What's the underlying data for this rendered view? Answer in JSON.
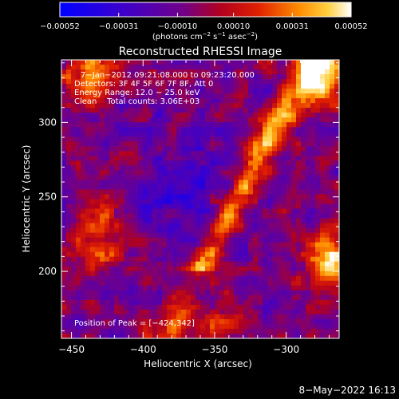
{
  "chart_data": {
    "type": "heatmap",
    "title": "Reconstructed RHESSI Image",
    "xlabel": "Heliocentric X (arcsec)",
    "ylabel": "Heliocentric Y (arcsec)",
    "xlim": [
      -457,
      -263
    ],
    "ylim": [
      155,
      342
    ],
    "x_ticks": [
      -450,
      -400,
      -350,
      -300
    ],
    "y_ticks": [
      200,
      250,
      300
    ],
    "colorbar": {
      "range": [
        -0.00052,
        0.00052
      ],
      "tick_values": [
        -0.00052,
        -0.00031,
        -0.0001,
        0.0001,
        0.00031,
        0.00052
      ],
      "tick_labels": [
        "−0.00052",
        "−0.00031",
        "−0.00010",
        "0.00010",
        "0.00031",
        "0.00052"
      ],
      "unit_main": "(photons cm",
      "unit_exp1": "−2",
      "unit_mid": " s",
      "unit_exp2": "−1",
      "unit_mid2": " asec",
      "unit_exp3": "−2",
      "unit_end": ")"
    },
    "info_lines": [
      "7−Jan−2012 09:21:08.000 to 09:23:20.000",
      "Detectors: 3F 4F 5F 6F 7F 8F, Att 0",
      "Energy Range: 12.0 − 25.0 keV",
      "Clean    Total counts: 3.06E+03"
    ],
    "peak_label": "Position of Peak = [−424,342]",
    "peak": [
      -424,
      342
    ]
  },
  "footer": {
    "timestamp": "8−May−2022 16:13"
  }
}
